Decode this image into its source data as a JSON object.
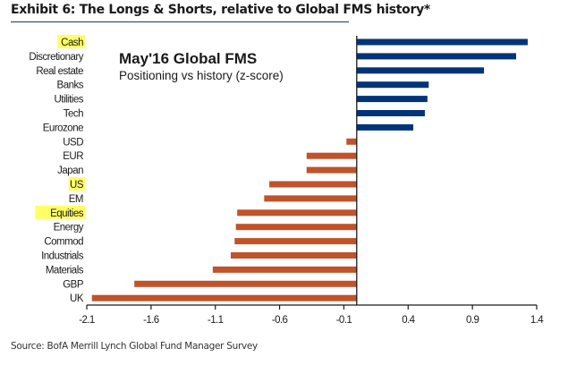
{
  "page": {
    "exhibit_title": "Exhibit 6: The Longs & Shorts, relative to Global FMS history*",
    "source": "Source: BofA Merrill Lynch Global Fund Manager Survey"
  },
  "colors": {
    "positive": "#003478",
    "negative": "#c0532a",
    "highlight": "#ffff66",
    "axis": "#1a1a1a"
  },
  "chart_data": {
    "type": "bar",
    "orientation": "horizontal",
    "title": "May'16 Global FMS",
    "subtitle": "Positioning vs history (z-score)",
    "xlabel": "",
    "ylabel": "",
    "xlim": [
      -2.1,
      1.4
    ],
    "xticks": [
      -2.1,
      -1.6,
      -1.1,
      -0.6,
      -0.1,
      0.4,
      0.9,
      1.4
    ],
    "xtick_labels": [
      "-2.1",
      "-1.6",
      "-1.1",
      "-0.6",
      "-0.1",
      "0.4",
      "0.9",
      "1.4"
    ],
    "grid": false,
    "categories": [
      "Cash",
      "Discretionary",
      "Real estate",
      "Banks",
      "Utilities",
      "Tech",
      "Eurozone",
      "USD",
      "EUR",
      "Japan",
      "US",
      "EM",
      "Equities",
      "Energy",
      "Commod",
      "Industrials",
      "Materials",
      "GBP",
      "UK"
    ],
    "values": [
      1.33,
      1.24,
      0.99,
      0.56,
      0.55,
      0.53,
      0.44,
      -0.08,
      -0.39,
      -0.39,
      -0.68,
      -0.72,
      -0.93,
      -0.94,
      -0.95,
      -0.98,
      -1.12,
      -1.73,
      -2.06
    ],
    "highlighted": [
      "Cash",
      "US",
      "Equities"
    ]
  }
}
